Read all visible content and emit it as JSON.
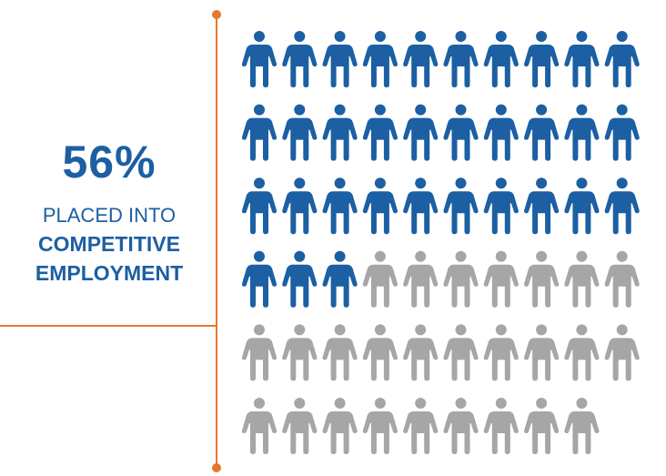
{
  "stat": {
    "percent": "56%",
    "line1": "PLACED INTO",
    "line2": "COMPETITIVE",
    "line3": "EMPLOYMENT"
  },
  "colors": {
    "accent": "#1c5fa3",
    "inactive": "#a6a6a6",
    "divider": "#e8772e"
  },
  "chart_data": {
    "type": "pictograph",
    "icon": "person-icon",
    "total": 59,
    "highlighted": 33,
    "per_row": 10,
    "percent": 56
  }
}
